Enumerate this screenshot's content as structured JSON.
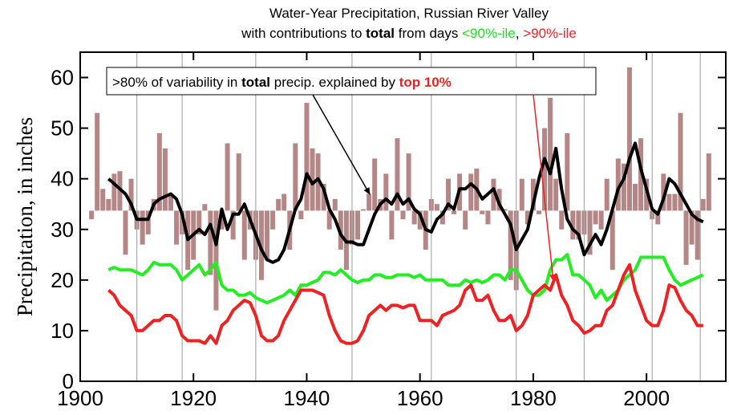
{
  "chart_data": {
    "type": "combo",
    "title": "Water-Year Precipitation, Russian River Valley",
    "subtitle": [
      {
        "text": "with contributions to ",
        "color": "#000000",
        "bold": false
      },
      {
        "text": "total",
        "color": "#000000",
        "bold": true
      },
      {
        "text": " from days ",
        "color": "#000000",
        "bold": false
      },
      {
        "text": "<90%-ile",
        "color": "#22dd22",
        "bold": false
      },
      {
        "text": ", ",
        "color": "#000000",
        "bold": false
      },
      {
        "text": ">90%-ile",
        "color": "#ee2222",
        "bold": false
      }
    ],
    "y_label": "Precipitation, in inches",
    "annotation": [
      {
        "text": ">80% of variability in ",
        "color": "#000000",
        "bold": false
      },
      {
        "text": "total",
        "color": "#000000",
        "bold": true
      },
      {
        "text": " precip. explained by ",
        "color": "#000000",
        "bold": false
      },
      {
        "text": "top 10%",
        "color": "#ee2222",
        "bold": true
      }
    ],
    "xlim": [
      1900,
      2014
    ],
    "ylim": [
      0,
      65
    ],
    "xticks": [
      1900,
      1920,
      1940,
      1960,
      1980,
      2000
    ],
    "yticks": [
      0,
      10,
      20,
      30,
      40,
      50,
      60
    ],
    "vlines": [
      1910,
      1918,
      1931,
      1948,
      1962,
      1977,
      1989,
      2001,
      2009.5
    ],
    "vline_color": "#aaaaaa",
    "x": [
      1902,
      1903,
      1904,
      1905,
      1906,
      1907,
      1908,
      1909,
      1910,
      1911,
      1912,
      1913,
      1914,
      1915,
      1916,
      1917,
      1918,
      1919,
      1920,
      1921,
      1922,
      1923,
      1924,
      1925,
      1926,
      1927,
      1928,
      1929,
      1930,
      1931,
      1932,
      1933,
      1934,
      1935,
      1936,
      1937,
      1938,
      1939,
      1940,
      1941,
      1942,
      1943,
      1944,
      1945,
      1946,
      1947,
      1948,
      1949,
      1950,
      1951,
      1952,
      1953,
      1954,
      1955,
      1956,
      1957,
      1958,
      1959,
      1960,
      1961,
      1962,
      1963,
      1964,
      1965,
      1966,
      1967,
      1968,
      1969,
      1970,
      1971,
      1972,
      1973,
      1974,
      1975,
      1976,
      1977,
      1978,
      1979,
      1980,
      1981,
      1982,
      1983,
      1984,
      1985,
      1986,
      1987,
      1988,
      1989,
      1990,
      1991,
      1992,
      1993,
      1994,
      1995,
      1996,
      1997,
      1998,
      1999,
      2000,
      2001,
      2002,
      2003,
      2004,
      2005,
      2006,
      2007,
      2008,
      2009,
      2010,
      2011
    ],
    "bars": {
      "color": "#b48686",
      "baseline": 33.7,
      "values": [
        32,
        53,
        38,
        36,
        41,
        41.5,
        25,
        40,
        30,
        27,
        29,
        36,
        49,
        46,
        37,
        27,
        29,
        22,
        24,
        29,
        35,
        21,
        14,
        30,
        47,
        28,
        45,
        24,
        30,
        24,
        20,
        24,
        30,
        36,
        37,
        26,
        47,
        32,
        55,
        46,
        45,
        39,
        30,
        36,
        26,
        22,
        27,
        28,
        34,
        37,
        44,
        36,
        41,
        28,
        48,
        32,
        45,
        31,
        30,
        26,
        36,
        35,
        31,
        40,
        33,
        41,
        30,
        41,
        42,
        33,
        31,
        40,
        38,
        34,
        20,
        18,
        40,
        31,
        40,
        33,
        50,
        56,
        40,
        30,
        49,
        28,
        28,
        29,
        25,
        31,
        30,
        40,
        22,
        44,
        43,
        62,
        39,
        48,
        40,
        32,
        31,
        41,
        37,
        37,
        53,
        23,
        27,
        24,
        36,
        45
      ]
    },
    "series": [
      {
        "color": "#22ee22",
        "values": [
          null,
          null,
          null,
          22,
          22.5,
          22,
          22,
          22,
          21.5,
          21,
          22,
          23.5,
          23,
          23,
          23,
          22,
          20,
          21,
          22,
          23,
          21,
          22,
          23.5,
          19,
          18,
          18,
          17,
          17,
          17.5,
          16.5,
          16,
          15.5,
          16,
          16.5,
          17,
          18,
          17,
          19,
          19,
          19.5,
          20,
          21.5,
          21.5,
          21,
          22,
          21,
          20,
          19.5,
          20,
          20,
          21,
          21,
          20.5,
          20.5,
          21,
          21,
          21,
          20.5,
          21,
          20,
          20,
          20,
          20,
          19,
          19,
          19,
          20,
          19.5,
          20,
          19.5,
          20,
          21,
          21,
          20,
          22,
          22,
          20,
          18,
          17,
          17,
          18,
          22,
          24,
          24,
          25,
          21,
          21,
          20,
          19,
          16.5,
          18,
          16,
          17,
          18,
          20,
          21,
          22,
          24.5,
          24.5,
          24.5,
          24.5,
          24.5,
          22,
          20,
          19,
          19.5,
          20,
          20.5,
          21,
          null
        ]
      },
      {
        "color": "#ee2222",
        "values": [
          null,
          null,
          null,
          18,
          17,
          15,
          14,
          13,
          10,
          10,
          11,
          12,
          12,
          13,
          13,
          12,
          9,
          8,
          8,
          8,
          7.5,
          9,
          7.5,
          11,
          12,
          14,
          15,
          16,
          15.5,
          13,
          9,
          8,
          8,
          9,
          12,
          14,
          16,
          18,
          18,
          18,
          17.5,
          17,
          13,
          10,
          8,
          7.5,
          7.5,
          8,
          10,
          13,
          14,
          15,
          14,
          15,
          15,
          14.5,
          15,
          15,
          12,
          12,
          12,
          11,
          13,
          13.5,
          14,
          15,
          18,
          19,
          16,
          16,
          17,
          14,
          12,
          12,
          13,
          10,
          11,
          13,
          17,
          18,
          19,
          18,
          21,
          17,
          15,
          12,
          11,
          9.5,
          10,
          11,
          11,
          14,
          15,
          18,
          21,
          23,
          18,
          15,
          12,
          11,
          11,
          14,
          19,
          18.5,
          16,
          14,
          13,
          11,
          11,
          null
        ]
      },
      {
        "color": "#000000",
        "values": [
          null,
          null,
          null,
          40,
          39,
          38,
          37,
          35,
          32,
          32,
          32,
          35,
          36,
          36.5,
          37,
          36,
          33,
          28,
          29,
          30,
          29,
          31,
          27,
          34,
          30,
          33,
          33,
          35,
          32,
          29,
          26,
          24,
          23.5,
          24,
          26,
          30,
          34,
          36,
          41,
          39,
          40,
          38,
          34,
          32,
          29,
          27.5,
          27.5,
          27,
          27,
          30,
          33,
          35,
          36,
          35,
          37,
          35,
          36,
          34,
          33,
          30,
          29.5,
          32,
          33,
          35,
          34,
          38,
          38,
          39,
          38,
          36,
          37,
          38,
          35,
          33,
          31,
          26,
          28,
          30,
          35,
          40,
          44,
          41,
          46,
          38,
          32,
          30,
          29,
          25,
          27,
          29,
          27,
          30,
          34,
          38,
          40,
          44,
          47,
          42,
          38,
          34,
          33,
          36,
          40,
          39,
          37,
          35,
          33,
          32,
          31.5,
          null
        ]
      }
    ]
  }
}
